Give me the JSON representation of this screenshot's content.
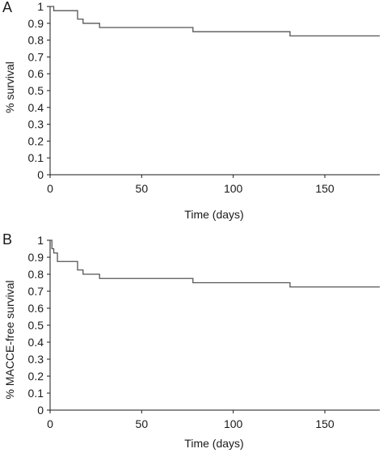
{
  "chart_data": [
    {
      "type": "line",
      "panel_label": "A",
      "title": "",
      "xlabel": "Time (days)",
      "ylabel": "% survival",
      "xlim": [
        0,
        180
      ],
      "ylim": [
        0,
        1
      ],
      "xticks": [
        0,
        50,
        100,
        150
      ],
      "yticks": [
        0,
        0.1,
        0.2,
        0.3,
        0.4,
        0.5,
        0.6,
        0.7,
        0.8,
        0.9,
        1
      ],
      "ytick_labels": [
        "0",
        "0.1",
        "0.2",
        "0.3",
        "0.4",
        "0.5",
        "0.6",
        "0.7",
        "0.8",
        "0.9",
        "1"
      ],
      "xtick_labels": [
        "0",
        "50",
        "100",
        "150"
      ],
      "grid": false,
      "step": true,
      "line_color": "#555555",
      "series": [
        {
          "x": [
            0,
            2,
            15,
            18,
            27,
            78,
            131,
            180
          ],
          "y": [
            1.0,
            0.975,
            0.925,
            0.9,
            0.875,
            0.85,
            0.825,
            0.825
          ]
        }
      ]
    },
    {
      "type": "line",
      "panel_label": "B",
      "title": "",
      "xlabel": "Time (days)",
      "ylabel": "% MACCE-free survival",
      "xlim": [
        0,
        180
      ],
      "ylim": [
        0,
        1
      ],
      "xticks": [
        0,
        50,
        100,
        150
      ],
      "yticks": [
        0,
        0.1,
        0.2,
        0.3,
        0.4,
        0.5,
        0.6,
        0.7,
        0.8,
        0.9,
        1
      ],
      "ytick_labels": [
        "0",
        "0.1",
        "0.2",
        "0.3",
        "0.4",
        "0.5",
        "0.6",
        "0.7",
        "0.8",
        "0.9",
        "1"
      ],
      "xtick_labels": [
        "0",
        "50",
        "100",
        "150"
      ],
      "grid": false,
      "step": true,
      "line_color": "#555555",
      "series": [
        {
          "x": [
            0,
            1,
            2,
            4,
            15,
            18,
            22,
            27,
            78,
            131,
            180
          ],
          "y": [
            1.0,
            0.95,
            0.925,
            0.875,
            0.825,
            0.8,
            0.8,
            0.775,
            0.75,
            0.725,
            0.725
          ]
        }
      ]
    }
  ]
}
